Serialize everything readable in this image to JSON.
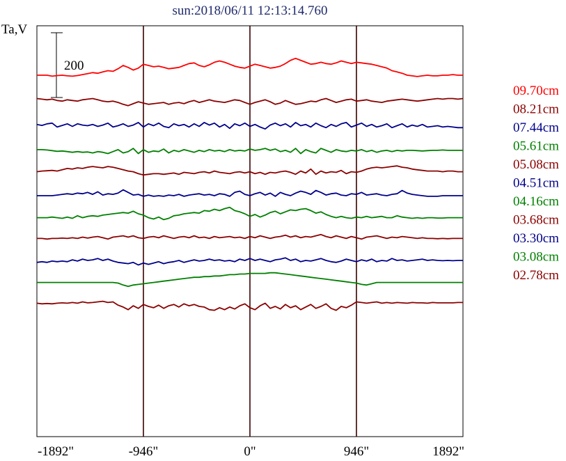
{
  "chart_data": {
    "type": "line",
    "title": "sun:2018/06/11 12:13:14.760",
    "ylabel": "Ta,V",
    "scale_bar_label": "200",
    "x_ticks": [
      "-1892\"",
      "-946\"",
      "0\"",
      "946\"",
      "1892\""
    ],
    "x_tick_values": [
      -1892,
      -946,
      0,
      946,
      1892
    ],
    "xlim": [
      -1892,
      1892
    ],
    "vertical_markers": [
      -946,
      0,
      946
    ],
    "grid": false,
    "legend_position": "right",
    "series": [
      {
        "name": "09.70cm",
        "color": "#ff0000",
        "baseline": 0,
        "values": [
          0,
          0,
          0,
          -3,
          -1,
          0,
          -2,
          -3,
          -1,
          2,
          5,
          8,
          6,
          10,
          14,
          12,
          20,
          30,
          24,
          16,
          22,
          34,
          30,
          26,
          28,
          24,
          20,
          22,
          24,
          30,
          36,
          38,
          30,
          26,
          32,
          40,
          44,
          40,
          34,
          28,
          24,
          22,
          28,
          34,
          30,
          26,
          22,
          24,
          28,
          36,
          46,
          52,
          46,
          40,
          34,
          36,
          40,
          36,
          34,
          38,
          44,
          40,
          36,
          40,
          38,
          36,
          34,
          30,
          26,
          22,
          14,
          10,
          6,
          0,
          -2,
          -4,
          -2,
          0,
          -2,
          -2,
          0,
          0,
          2,
          0,
          0
        ]
      },
      {
        "name": "08.21cm",
        "color": "#8b0000",
        "baseline": -80,
        "values": [
          -72,
          -74,
          -76,
          -74,
          -78,
          -80,
          -76,
          -78,
          -80,
          -76,
          -74,
          -72,
          -76,
          -80,
          -82,
          -80,
          -84,
          -90,
          -94,
          -88,
          -82,
          -86,
          -90,
          -88,
          -86,
          -84,
          -90,
          -86,
          -84,
          -88,
          -82,
          -78,
          -84,
          -80,
          -76,
          -80,
          -82,
          -84,
          -80,
          -76,
          -78,
          -84,
          -90,
          -84,
          -80,
          -76,
          -82,
          -90,
          -86,
          -78,
          -84,
          -90,
          -88,
          -84,
          -80,
          -82,
          -76,
          -72,
          -78,
          -84,
          -80,
          -76,
          -74,
          -80,
          -78,
          -76,
          -80,
          -82,
          -84,
          -80,
          -78,
          -76,
          -74,
          -76,
          -78,
          -80,
          -78,
          -76,
          -74,
          -72,
          -74,
          -72,
          -72,
          -74,
          -72
        ]
      },
      {
        "name": "07.44cm",
        "color": "#00008b",
        "baseline": -160,
        "values": [
          -152,
          -155,
          -150,
          -148,
          -160,
          -155,
          -150,
          -158,
          -150,
          -154,
          -156,
          -152,
          -158,
          -154,
          -148,
          -160,
          -156,
          -150,
          -158,
          -154,
          -146,
          -160,
          -150,
          -156,
          -148,
          -158,
          -162,
          -150,
          -156,
          -152,
          -160,
          -150,
          -158,
          -146,
          -154,
          -148,
          -160,
          -152,
          -164,
          -150,
          -156,
          -148,
          -158,
          -152,
          -160,
          -166,
          -154,
          -148,
          -156,
          -150,
          -160,
          -146,
          -156,
          -152,
          -160,
          -148,
          -156,
          -162,
          -152,
          -158,
          -150,
          -146,
          -160,
          -154,
          -148,
          -158,
          -152,
          -160,
          -156,
          -150,
          -162,
          -156,
          -150,
          -160,
          -154,
          -158,
          -152,
          -160,
          -158,
          -156,
          -160,
          -158,
          -160,
          -162,
          -162
        ]
      },
      {
        "name": "05.61cm",
        "color": "#008000",
        "baseline": -232,
        "values": [
          -230,
          -230,
          -231,
          -233,
          -235,
          -234,
          -236,
          -238,
          -236,
          -238,
          -237,
          -240,
          -236,
          -238,
          -242,
          -236,
          -230,
          -240,
          -236,
          -226,
          -242,
          -230,
          -238,
          -234,
          -236,
          -228,
          -240,
          -232,
          -236,
          -230,
          -234,
          -238,
          -232,
          -236,
          -230,
          -234,
          -232,
          -236,
          -230,
          -234,
          -232,
          -234,
          -228,
          -232,
          -230,
          -226,
          -232,
          -228,
          -236,
          -232,
          -238,
          -226,
          -242,
          -230,
          -236,
          -240,
          -226,
          -232,
          -238,
          -230,
          -234,
          -236,
          -232,
          -234,
          -230,
          -236,
          -232,
          -238,
          -234,
          -232,
          -236,
          -232,
          -234,
          -232,
          -232,
          -233,
          -234,
          -233,
          -232,
          -232,
          -231,
          -232,
          -232,
          -232,
          -232
        ]
      },
      {
        "name": "05.08cm",
        "color": "#8b0000",
        "baseline": -300,
        "values": [
          -298,
          -296,
          -295,
          -294,
          -296,
          -292,
          -288,
          -290,
          -286,
          -288,
          -284,
          -282,
          -284,
          -286,
          -282,
          -284,
          -288,
          -292,
          -296,
          -298,
          -304,
          -308,
          -306,
          -304,
          -304,
          -306,
          -304,
          -302,
          -306,
          -300,
          -302,
          -304,
          -300,
          -298,
          -302,
          -296,
          -300,
          -302,
          -304,
          -300,
          -298,
          -302,
          -298,
          -304,
          -300,
          -306,
          -300,
          -302,
          -298,
          -296,
          -300,
          -306,
          -296,
          -302,
          -290,
          -306,
          -296,
          -302,
          -298,
          -300,
          -294,
          -304,
          -298,
          -300,
          -296,
          -290,
          -286,
          -284,
          -286,
          -284,
          -282,
          -280,
          -284,
          -286,
          -290,
          -292,
          -294,
          -296,
          -296,
          -296,
          -298,
          -296,
          -296,
          -298,
          -298
        ]
      },
      {
        "name": "04.51cm",
        "color": "#00008b",
        "baseline": -372,
        "values": [
          -372,
          -372,
          -372,
          -372,
          -370,
          -368,
          -366,
          -368,
          -364,
          -366,
          -362,
          -368,
          -360,
          -370,
          -366,
          -368,
          -364,
          -354,
          -362,
          -370,
          -368,
          -374,
          -370,
          -374,
          -372,
          -374,
          -370,
          -372,
          -368,
          -374,
          -370,
          -368,
          -366,
          -370,
          -368,
          -372,
          -366,
          -368,
          -374,
          -362,
          -358,
          -368,
          -372,
          -366,
          -362,
          -370,
          -364,
          -374,
          -362,
          -368,
          -372,
          -364,
          -358,
          -362,
          -368,
          -356,
          -362,
          -370,
          -366,
          -364,
          -370,
          -372,
          -366,
          -368,
          -362,
          -370,
          -368,
          -366,
          -370,
          -372,
          -368,
          -366,
          -356,
          -364,
          -368,
          -370,
          -372,
          -374,
          -374,
          -374,
          -372,
          -372,
          -372,
          -372,
          -372
        ]
      },
      {
        "name": "04.16cm",
        "color": "#008000",
        "baseline": -440,
        "values": [
          -440,
          -440,
          -440,
          -438,
          -440,
          -442,
          -438,
          -442,
          -434,
          -440,
          -436,
          -434,
          -436,
          -432,
          -430,
          -428,
          -426,
          -424,
          -426,
          -420,
          -428,
          -432,
          -440,
          -444,
          -438,
          -446,
          -442,
          -434,
          -432,
          -428,
          -426,
          -424,
          -426,
          -418,
          -420,
          -414,
          -418,
          -412,
          -408,
          -418,
          -422,
          -428,
          -436,
          -430,
          -438,
          -432,
          -424,
          -420,
          -428,
          -422,
          -416,
          -418,
          -414,
          -412,
          -418,
          -426,
          -422,
          -430,
          -436,
          -440,
          -436,
          -440,
          -442,
          -438,
          -440,
          -436,
          -440,
          -438,
          -436,
          -440,
          -440,
          -434,
          -438,
          -440,
          -442,
          -440,
          -442,
          -440,
          -440,
          -441,
          -441,
          -440,
          -440,
          -440,
          -440
        ]
      },
      {
        "name": "03.68cm",
        "color": "#8b0000",
        "baseline": -508,
        "values": [
          -504,
          -504,
          -506,
          -504,
          -504,
          -503,
          -504,
          -502,
          -504,
          -500,
          -503,
          -500,
          -498,
          -502,
          -506,
          -500,
          -498,
          -496,
          -500,
          -496,
          -502,
          -504,
          -500,
          -498,
          -502,
          -496,
          -500,
          -504,
          -500,
          -498,
          -502,
          -496,
          -502,
          -500,
          -504,
          -498,
          -502,
          -500,
          -498,
          -502,
          -500,
          -504,
          -498,
          -502,
          -496,
          -500,
          -504,
          -500,
          -498,
          -494,
          -500,
          -496,
          -502,
          -498,
          -500,
          -496,
          -492,
          -498,
          -502,
          -496,
          -500,
          -504,
          -498,
          -502,
          -506,
          -500,
          -498,
          -496,
          -500,
          -504,
          -500,
          -502,
          -498,
          -500,
          -502,
          -504,
          -502,
          -504,
          -504,
          -505,
          -504,
          -505,
          -504,
          -504,
          -504
        ]
      },
      {
        "name": "03.30cm",
        "color": "#00008b",
        "baseline": -578,
        "values": [
          -578,
          -576,
          -578,
          -574,
          -576,
          -574,
          -576,
          -570,
          -574,
          -568,
          -572,
          -570,
          -566,
          -572,
          -568,
          -574,
          -578,
          -580,
          -582,
          -578,
          -586,
          -580,
          -584,
          -580,
          -576,
          -582,
          -578,
          -576,
          -572,
          -578,
          -574,
          -570,
          -574,
          -572,
          -568,
          -572,
          -570,
          -574,
          -572,
          -576,
          -568,
          -572,
          -566,
          -572,
          -568,
          -572,
          -576,
          -570,
          -568,
          -564,
          -572,
          -568,
          -576,
          -572,
          -574,
          -570,
          -566,
          -572,
          -576,
          -578,
          -574,
          -568,
          -572,
          -576,
          -570,
          -574,
          -568,
          -576,
          -572,
          -574,
          -566,
          -572,
          -570,
          -574,
          -572,
          -570,
          -568,
          -572,
          -570,
          -572,
          -573,
          -572,
          -573,
          -572,
          -572
        ]
      },
      {
        "name": "03.08cm",
        "color": "#008000",
        "baseline": -640,
        "values": [
          -640,
          -640,
          -640,
          -640,
          -640,
          -640,
          -640,
          -640,
          -640,
          -640,
          -640,
          -640,
          -640,
          -640,
          -640,
          -640,
          -642,
          -648,
          -652,
          -648,
          -646,
          -644,
          -642,
          -640,
          -638,
          -636,
          -634,
          -632,
          -630,
          -628,
          -626,
          -624,
          -624,
          -622,
          -622,
          -620,
          -620,
          -618,
          -616,
          -616,
          -614,
          -614,
          -612,
          -612,
          -612,
          -612,
          -610,
          -610,
          -612,
          -614,
          -616,
          -618,
          -620,
          -622,
          -624,
          -626,
          -628,
          -630,
          -632,
          -634,
          -636,
          -638,
          -640,
          -642,
          -646,
          -648,
          -644,
          -640,
          -640,
          -640,
          -640,
          -640,
          -640,
          -640,
          -640,
          -640,
          -640,
          -640,
          -640,
          -640,
          -640,
          -640,
          -640,
          -640,
          -640
        ]
      },
      {
        "name": "02.78cm",
        "color": "#8b0000",
        "baseline": -706,
        "values": [
          -704,
          -706,
          -705,
          -706,
          -704,
          -703,
          -704,
          -702,
          -704,
          -700,
          -703,
          -702,
          -700,
          -698,
          -702,
          -700,
          -710,
          -716,
          -724,
          -712,
          -720,
          -708,
          -714,
          -718,
          -710,
          -720,
          -712,
          -708,
          -716,
          -706,
          -712,
          -708,
          -714,
          -716,
          -724,
          -726,
          -718,
          -724,
          -716,
          -722,
          -712,
          -706,
          -718,
          -724,
          -712,
          -704,
          -720,
          -714,
          -722,
          -708,
          -718,
          -712,
          -724,
          -716,
          -708,
          -720,
          -714,
          -706,
          -720,
          -726,
          -714,
          -718,
          -710,
          -700,
          -702,
          -704,
          -702,
          -700,
          -704,
          -702,
          -704,
          -702,
          -703,
          -704,
          -702,
          -703,
          -703,
          -704,
          -702,
          -703,
          -703,
          -703,
          -703,
          -702,
          -702
        ]
      }
    ]
  }
}
